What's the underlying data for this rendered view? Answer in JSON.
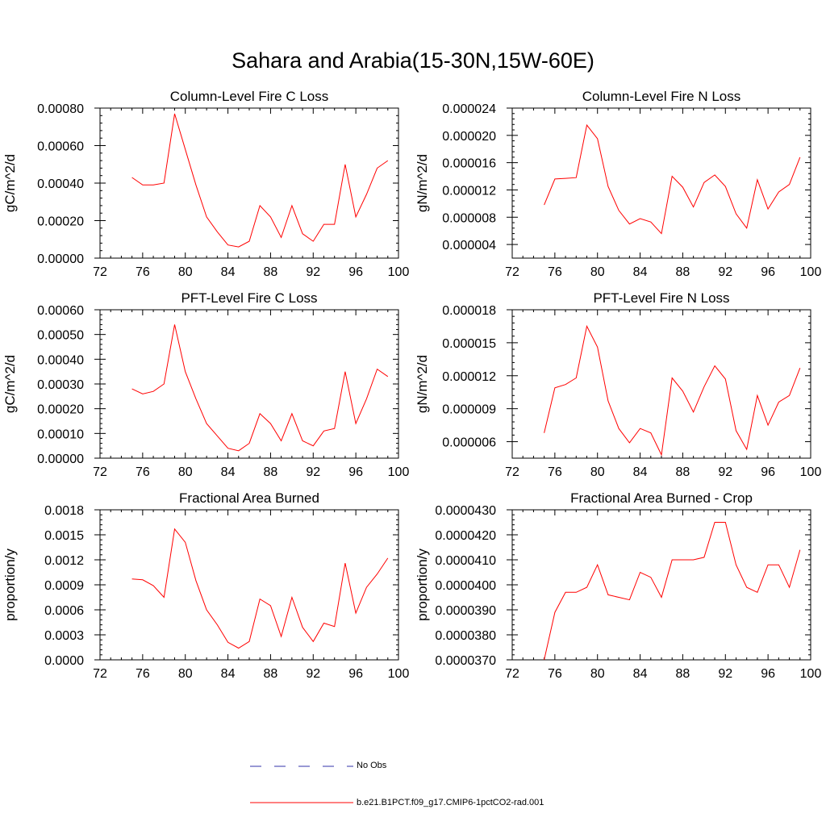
{
  "main_title": "Sahara and Arabia(15-30N,15W-60E)",
  "legend": {
    "obs_label": "No Obs",
    "obs_color": "#3333aa",
    "model_label": "b.e21.B1PCT.f09_g17.CMIP6-1pctCO2-rad.001",
    "model_color": "#ff0000"
  },
  "chart_data": [
    {
      "type": "line",
      "title": "Column-Level Fire C Loss",
      "ylabel": "gC/m^2/d",
      "xlim": [
        72,
        100
      ],
      "ylim": [
        0,
        0.0008
      ],
      "x_ticks": [
        "72",
        "76",
        "80",
        "84",
        "88",
        "92",
        "96",
        "100"
      ],
      "y_ticks": [
        "0.00000",
        "0.00020",
        "0.00040",
        "0.00060",
        "0.00080"
      ],
      "x": [
        75,
        76,
        77,
        78,
        79,
        80,
        81,
        82,
        83,
        84,
        85,
        86,
        87,
        88,
        89,
        90,
        91,
        92,
        93,
        94,
        95,
        96,
        97,
        98,
        99
      ],
      "series": [
        {
          "values": [
            0.00043,
            0.00039,
            0.00039,
            0.0004,
            0.00077,
            0.00058,
            0.00039,
            0.00022,
            0.00014,
            7e-05,
            6e-05,
            9e-05,
            0.00028,
            0.00022,
            0.00011,
            0.00028,
            0.00013,
            9e-05,
            0.00018,
            0.00018,
            0.0005,
            0.00022,
            0.00034,
            0.00048,
            0.00052
          ]
        }
      ],
      "grid": false
    },
    {
      "type": "line",
      "title": "Column-Level Fire N Loss",
      "ylabel": "gN/m^2/d",
      "xlim": [
        72,
        100
      ],
      "ylim": [
        2e-06,
        2.4e-05
      ],
      "x_ticks": [
        "72",
        "76",
        "80",
        "84",
        "88",
        "92",
        "96",
        "100"
      ],
      "y_ticks": [
        "0.000004",
        "0.000008",
        "0.000012",
        "0.000016",
        "0.000020",
        "0.000024"
      ],
      "y_tick_values": [
        4e-06,
        8e-06,
        1.2e-05,
        1.6e-05,
        2e-05,
        2.4e-05
      ],
      "x": [
        75,
        76,
        77,
        78,
        79,
        80,
        81,
        82,
        83,
        84,
        85,
        86,
        87,
        88,
        89,
        90,
        91,
        92,
        93,
        94,
        95,
        96,
        97,
        98,
        99
      ],
      "series": [
        {
          "values": [
            9.8e-06,
            1.36e-05,
            1.37e-05,
            1.38e-05,
            2.15e-05,
            1.95e-05,
            1.25e-05,
            9e-06,
            7e-06,
            7.8e-06,
            7.3e-06,
            5.6e-06,
            1.4e-05,
            1.24e-05,
            9.5e-06,
            1.31e-05,
            1.42e-05,
            1.25e-05,
            8.5e-06,
            6.4e-06,
            1.35e-05,
            9.2e-06,
            1.17e-05,
            1.28e-05,
            1.68e-05
          ]
        }
      ],
      "grid": false
    },
    {
      "type": "line",
      "title": "PFT-Level Fire C Loss",
      "ylabel": "gC/m^2/d",
      "xlim": [
        72,
        100
      ],
      "ylim": [
        0,
        0.0006
      ],
      "x_ticks": [
        "72",
        "76",
        "80",
        "84",
        "88",
        "92",
        "96",
        "100"
      ],
      "y_ticks": [
        "0.00000",
        "0.00010",
        "0.00020",
        "0.00030",
        "0.00040",
        "0.00050",
        "0.00060"
      ],
      "x": [
        75,
        76,
        77,
        78,
        79,
        80,
        81,
        82,
        83,
        84,
        85,
        86,
        87,
        88,
        89,
        90,
        91,
        92,
        93,
        94,
        95,
        96,
        97,
        98,
        99
      ],
      "series": [
        {
          "values": [
            0.00028,
            0.00026,
            0.00027,
            0.0003,
            0.00054,
            0.00035,
            0.00024,
            0.00014,
            9e-05,
            4e-05,
            3e-05,
            6e-05,
            0.00018,
            0.00014,
            7e-05,
            0.00018,
            7e-05,
            5e-05,
            0.00011,
            0.00012,
            0.00035,
            0.00014,
            0.00024,
            0.00036,
            0.00033
          ]
        }
      ],
      "grid": false
    },
    {
      "type": "line",
      "title": "PFT-Level Fire N Loss",
      "ylabel": "gN/m^2/d",
      "xlim": [
        72,
        100
      ],
      "ylim": [
        4.5e-06,
        1.8e-05
      ],
      "x_ticks": [
        "72",
        "76",
        "80",
        "84",
        "88",
        "92",
        "96",
        "100"
      ],
      "y_ticks": [
        "0.000006",
        "0.000009",
        "0.000012",
        "0.000015",
        "0.000018"
      ],
      "y_tick_values": [
        6e-06,
        9e-06,
        1.2e-05,
        1.5e-05,
        1.8e-05
      ],
      "x": [
        75,
        76,
        77,
        78,
        79,
        80,
        81,
        82,
        83,
        84,
        85,
        86,
        87,
        88,
        89,
        90,
        91,
        92,
        93,
        94,
        95,
        96,
        97,
        98,
        99
      ],
      "series": [
        {
          "values": [
            6.8e-06,
            1.09e-05,
            1.12e-05,
            1.18e-05,
            1.65e-05,
            1.46e-05,
            9.7e-06,
            7.2e-06,
            5.9e-06,
            7.2e-06,
            6.8e-06,
            4.8e-06,
            1.18e-05,
            1.06e-05,
            8.7e-06,
            1.1e-05,
            1.29e-05,
            1.17e-05,
            7e-06,
            5.3e-06,
            1.02e-05,
            7.5e-06,
            9.6e-06,
            1.02e-05,
            1.27e-05
          ]
        }
      ],
      "grid": false
    },
    {
      "type": "line",
      "title": "Fractional Area Burned",
      "ylabel": "proportion/y",
      "xlim": [
        72,
        100
      ],
      "ylim": [
        0,
        0.0018
      ],
      "x_ticks": [
        "72",
        "76",
        "80",
        "84",
        "88",
        "92",
        "96",
        "100"
      ],
      "y_ticks": [
        "0.0000",
        "0.0003",
        "0.0006",
        "0.0009",
        "0.0012",
        "0.0015",
        "0.0018"
      ],
      "x": [
        75,
        76,
        77,
        78,
        79,
        80,
        81,
        82,
        83,
        84,
        85,
        86,
        87,
        88,
        89,
        90,
        91,
        92,
        93,
        94,
        95,
        96,
        97,
        98,
        99
      ],
      "series": [
        {
          "values": [
            0.00097,
            0.00096,
            0.00089,
            0.00075,
            0.00157,
            0.00141,
            0.00095,
            0.0006,
            0.00042,
            0.00021,
            0.00014,
            0.00022,
            0.00073,
            0.00065,
            0.00028,
            0.00075,
            0.00039,
            0.00022,
            0.00044,
            0.0004,
            0.00116,
            0.00056,
            0.00087,
            0.00103,
            0.00122
          ]
        }
      ],
      "grid": false
    },
    {
      "type": "line",
      "title": "Fractional Area Burned - Crop",
      "ylabel": "proportion/y",
      "xlim": [
        72,
        100
      ],
      "ylim": [
        3.7e-05,
        4.3e-05
      ],
      "x_ticks": [
        "72",
        "76",
        "80",
        "84",
        "88",
        "92",
        "96",
        "100"
      ],
      "y_ticks": [
        "0.0000370",
        "0.0000380",
        "0.0000390",
        "0.0000400",
        "0.0000410",
        "0.0000420",
        "0.0000430"
      ],
      "x": [
        75,
        76,
        77,
        78,
        79,
        80,
        81,
        82,
        83,
        84,
        85,
        86,
        87,
        88,
        89,
        90,
        91,
        92,
        93,
        94,
        95,
        96,
        97,
        98,
        99
      ],
      "series": [
        {
          "values": [
            3.7e-05,
            3.89e-05,
            3.97e-05,
            3.97e-05,
            3.99e-05,
            4.08e-05,
            3.96e-05,
            3.95e-05,
            3.94e-05,
            4.05e-05,
            4.03e-05,
            3.95e-05,
            4.1e-05,
            4.1e-05,
            4.1e-05,
            4.11e-05,
            4.25e-05,
            4.25e-05,
            4.08e-05,
            3.99e-05,
            3.97e-05,
            4.08e-05,
            4.08e-05,
            3.99e-05,
            4.14e-05
          ]
        }
      ],
      "grid": false
    }
  ]
}
